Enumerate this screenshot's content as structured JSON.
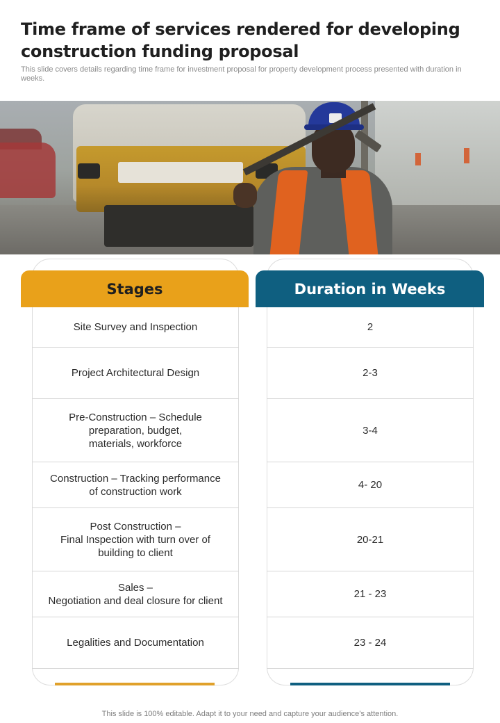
{
  "title": "Time frame of services rendered for developing construction funding proposal",
  "subtitle": "This slide covers details regarding time frame for investment proposal for property development process presented with duration in weeks.",
  "table": {
    "stages_header": "Stages",
    "duration_header": "Duration in Weeks",
    "rows": [
      {
        "stage": "Site Survey and Inspection",
        "duration": "2"
      },
      {
        "stage": "Project Architectural Design",
        "duration": "2-3"
      },
      {
        "stage": "Pre-Construction – Schedule\npreparation, budget,\nmaterials, workforce",
        "duration": "3-4"
      },
      {
        "stage": "Construction – Tracking performance\nof construction work",
        "duration": "4- 20"
      },
      {
        "stage": "Post Construction –\nFinal Inspection with turn over of\nbuilding to client",
        "duration": "20-21"
      },
      {
        "stage": "Sales –\nNegotiation and deal closure for client",
        "duration": "21 - 23"
      },
      {
        "stage": "Legalities and Documentation",
        "duration": "23 - 24"
      }
    ]
  },
  "footer": "This slide is 100% editable. Adapt it to your need and capture your audience’s attention.",
  "colors": {
    "stages_accent": "#e9a11a",
    "duration_accent": "#0f5f80"
  }
}
